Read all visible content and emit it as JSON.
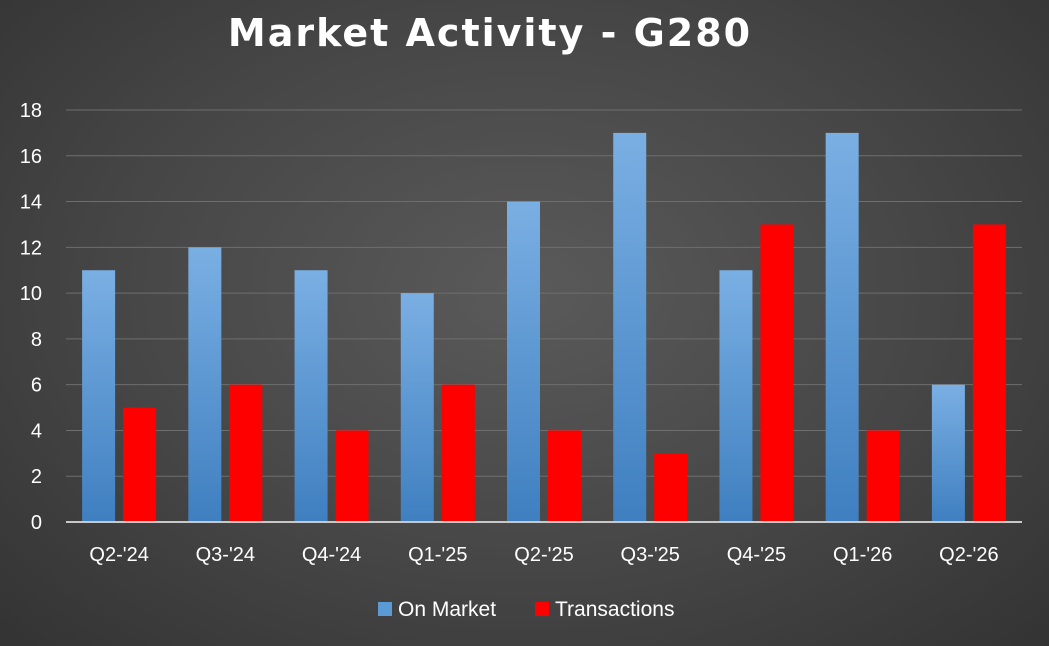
{
  "chart_data": {
    "type": "bar",
    "title": "Market Activity - G280",
    "categories": [
      "Q2-'24",
      "Q3-'24",
      "Q4-'24",
      "Q1-'25",
      "Q2-'25",
      "Q3-'25",
      "Q4-'25",
      "Q1-'26",
      "Q2-'26"
    ],
    "series": [
      {
        "name": "On Market",
        "values": [
          11,
          12,
          11,
          10,
          14,
          17,
          11,
          17,
          6
        ],
        "color": "#5b9bd5"
      },
      {
        "name": "Transactions",
        "values": [
          5,
          6,
          4,
          6,
          4,
          3,
          13,
          4,
          13
        ],
        "color": "#ff0000"
      }
    ],
    "ylim": [
      0,
      18
    ],
    "yticks": [
      0,
      2,
      4,
      6,
      8,
      10,
      12,
      14,
      16,
      18
    ],
    "grid": true,
    "legend_position": "bottom"
  }
}
